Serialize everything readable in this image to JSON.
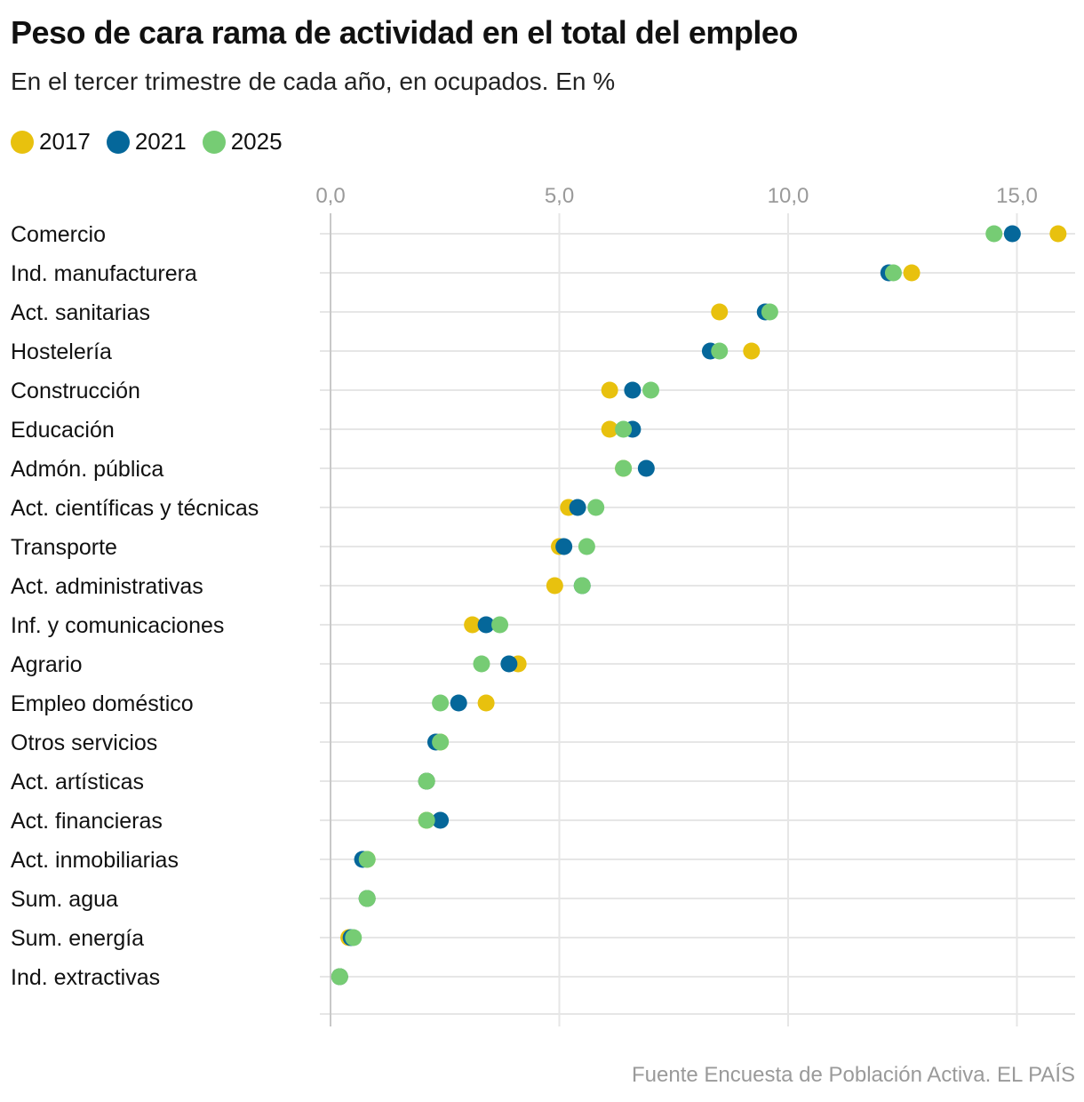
{
  "chart_data": {
    "type": "scatter",
    "title": "Peso de cara rama de actividad en el total del empleo",
    "subtitle": "En el tercer trimestre de cada año, en ocupados. En %",
    "source": "Fuente Encuesta de Población Activa. EL PAÍS",
    "xlim": [
      0,
      16.3
    ],
    "x_ticks": [
      0,
      5,
      10,
      15
    ],
    "x_tick_labels": [
      "0,0",
      "5,0",
      "10,0",
      "15,0"
    ],
    "legend_position": "top-left",
    "grid": true,
    "categories": [
      "Comercio",
      "Ind. manufacturera",
      "Act. sanitarias",
      "Hostelería",
      "Construcción",
      "Educación",
      "Admón. pública",
      "Act. científicas y técnicas",
      "Transporte",
      "Act. administrativas",
      "Inf. y comunicaciones",
      "Agrario",
      "Empleo doméstico",
      "Otros servicios",
      "Act. artísticas",
      "Act. financieras",
      "Act. inmobiliarias",
      "Sum. agua",
      "Sum. energía",
      "Ind. extractivas"
    ],
    "series": [
      {
        "name": "2017",
        "color": "#e8c10e",
        "values": [
          15.9,
          12.7,
          8.5,
          9.2,
          6.1,
          6.1,
          6.4,
          5.2,
          5.0,
          4.9,
          3.1,
          4.1,
          3.4,
          2.4,
          2.1,
          2.1,
          0.8,
          0.8,
          0.4,
          0.2
        ]
      },
      {
        "name": "2021",
        "color": "#05679a",
        "values": [
          14.9,
          12.2,
          9.5,
          8.3,
          6.6,
          6.6,
          6.9,
          5.4,
          5.1,
          5.5,
          3.4,
          3.9,
          2.8,
          2.3,
          2.1,
          2.4,
          0.7,
          0.8,
          0.45,
          0.2
        ]
      },
      {
        "name": "2025",
        "color": "#76cc74",
        "values": [
          14.5,
          12.3,
          9.6,
          8.5,
          7.0,
          6.4,
          6.4,
          5.8,
          5.6,
          5.5,
          3.7,
          3.3,
          2.4,
          2.4,
          2.1,
          2.1,
          0.8,
          0.8,
          0.5,
          0.2
        ]
      }
    ]
  }
}
